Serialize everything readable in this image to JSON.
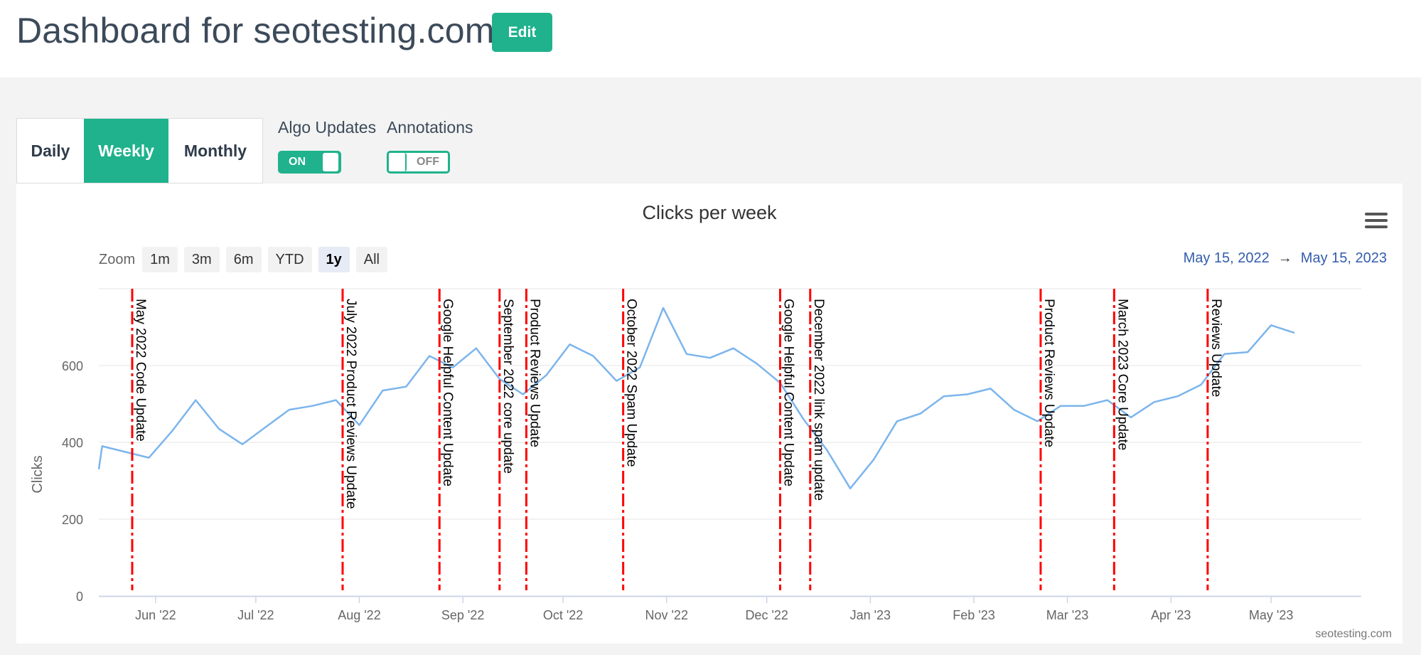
{
  "header": {
    "title": "Dashboard for seotesting.com",
    "edit_label": "Edit"
  },
  "period_tabs": [
    {
      "label": "Daily",
      "active": false
    },
    {
      "label": "Weekly",
      "active": true
    },
    {
      "label": "Monthly",
      "active": false
    }
  ],
  "toggles": {
    "algo": {
      "label": "Algo Updates",
      "state": "ON"
    },
    "annotations": {
      "label": "Annotations",
      "state": "OFF"
    }
  },
  "zoom": {
    "label": "Zoom",
    "buttons": [
      {
        "label": "1m",
        "active": false
      },
      {
        "label": "3m",
        "active": false
      },
      {
        "label": "6m",
        "active": false
      },
      {
        "label": "YTD",
        "active": false
      },
      {
        "label": "1y",
        "active": true
      },
      {
        "label": "All",
        "active": false
      }
    ]
  },
  "range": {
    "from": "May 15, 2022",
    "arrow": "→",
    "to": "May 15, 2023"
  },
  "menu_icon": "hamburger-menu-icon",
  "credit": "seotesting.com",
  "colors": {
    "accent": "#1fb28d",
    "line": "#7cb5ec",
    "update_line": "#ff0000",
    "range_text": "#335cad"
  },
  "chart_data": {
    "type": "line",
    "title": "Clicks per week",
    "ylabel": "Clicks",
    "ylim": [
      0,
      800
    ],
    "yticks": [
      {
        "value": 0,
        "label": "0"
      },
      {
        "value": 200,
        "label": "200"
      },
      {
        "value": 400,
        "label": "400"
      },
      {
        "value": 600,
        "label": "600"
      }
    ],
    "xlim": [
      "2022-05-15",
      "2023-05-28"
    ],
    "xticks": [
      {
        "date": "2022-06-01",
        "label": "Jun '22"
      },
      {
        "date": "2022-07-01",
        "label": "Jul '22"
      },
      {
        "date": "2022-08-01",
        "label": "Aug '22"
      },
      {
        "date": "2022-09-01",
        "label": "Sep '22"
      },
      {
        "date": "2022-10-01",
        "label": "Oct '22"
      },
      {
        "date": "2022-11-01",
        "label": "Nov '22"
      },
      {
        "date": "2022-12-01",
        "label": "Dec '22"
      },
      {
        "date": "2023-01-01",
        "label": "Jan '23"
      },
      {
        "date": "2023-02-01",
        "label": "Feb '23"
      },
      {
        "date": "2023-03-01",
        "label": "Mar '23"
      },
      {
        "date": "2023-04-01",
        "label": "Apr '23"
      },
      {
        "date": "2023-05-01",
        "label": "May '23"
      }
    ],
    "grid": true,
    "series": [
      {
        "points": [
          [
            "2022-05-15",
            330
          ],
          [
            "2022-05-16",
            390
          ],
          [
            "2022-05-23",
            375
          ],
          [
            "2022-05-30",
            360
          ],
          [
            "2022-06-06",
            430
          ],
          [
            "2022-06-13",
            510
          ],
          [
            "2022-06-20",
            435
          ],
          [
            "2022-06-27",
            395
          ],
          [
            "2022-07-04",
            440
          ],
          [
            "2022-07-11",
            485
          ],
          [
            "2022-07-18",
            495
          ],
          [
            "2022-07-25",
            510
          ],
          [
            "2022-08-01",
            445
          ],
          [
            "2022-08-08",
            535
          ],
          [
            "2022-08-15",
            545
          ],
          [
            "2022-08-22",
            625
          ],
          [
            "2022-08-29",
            595
          ],
          [
            "2022-09-05",
            645
          ],
          [
            "2022-09-12",
            565
          ],
          [
            "2022-09-19",
            525
          ],
          [
            "2022-09-26",
            575
          ],
          [
            "2022-10-03",
            655
          ],
          [
            "2022-10-10",
            625
          ],
          [
            "2022-10-17",
            560
          ],
          [
            "2022-10-24",
            595
          ],
          [
            "2022-10-31",
            750
          ],
          [
            "2022-11-07",
            630
          ],
          [
            "2022-11-14",
            620
          ],
          [
            "2022-11-21",
            645
          ],
          [
            "2022-11-28",
            605
          ],
          [
            "2022-12-05",
            555
          ],
          [
            "2022-12-12",
            460
          ],
          [
            "2022-12-19",
            380
          ],
          [
            "2022-12-26",
            280
          ],
          [
            "2023-01-02",
            355
          ],
          [
            "2023-01-09",
            455
          ],
          [
            "2023-01-16",
            475
          ],
          [
            "2023-01-23",
            520
          ],
          [
            "2023-01-30",
            525
          ],
          [
            "2023-02-06",
            540
          ],
          [
            "2023-02-13",
            485
          ],
          [
            "2023-02-20",
            455
          ],
          [
            "2023-02-27",
            495
          ],
          [
            "2023-03-06",
            495
          ],
          [
            "2023-03-13",
            510
          ],
          [
            "2023-03-20",
            465
          ],
          [
            "2023-03-27",
            505
          ],
          [
            "2023-04-03",
            520
          ],
          [
            "2023-04-10",
            550
          ],
          [
            "2023-04-17",
            630
          ],
          [
            "2023-04-24",
            635
          ],
          [
            "2023-05-01",
            705
          ],
          [
            "2023-05-08",
            685
          ]
        ]
      }
    ],
    "updates": [
      {
        "date": "2022-05-25",
        "label": "May 2022 Code Update"
      },
      {
        "date": "2022-07-27",
        "label": "July 2022 Product Reviews Update"
      },
      {
        "date": "2022-08-25",
        "label": "Google Helpful Content Update"
      },
      {
        "date": "2022-09-12",
        "label": "September 2022 core update"
      },
      {
        "date": "2022-09-20",
        "label": "Product Reviews Update"
      },
      {
        "date": "2022-10-19",
        "label": "October 2022 Spam Update"
      },
      {
        "date": "2022-12-05",
        "label": "Google Helpful Content Update"
      },
      {
        "date": "2022-12-14",
        "label": "December 2022 link spam update"
      },
      {
        "date": "2023-02-21",
        "label": "Product Reviews Update"
      },
      {
        "date": "2023-03-15",
        "label": "March 2023 Core Update"
      },
      {
        "date": "2023-04-12",
        "label": "Reviews Update"
      }
    ]
  }
}
